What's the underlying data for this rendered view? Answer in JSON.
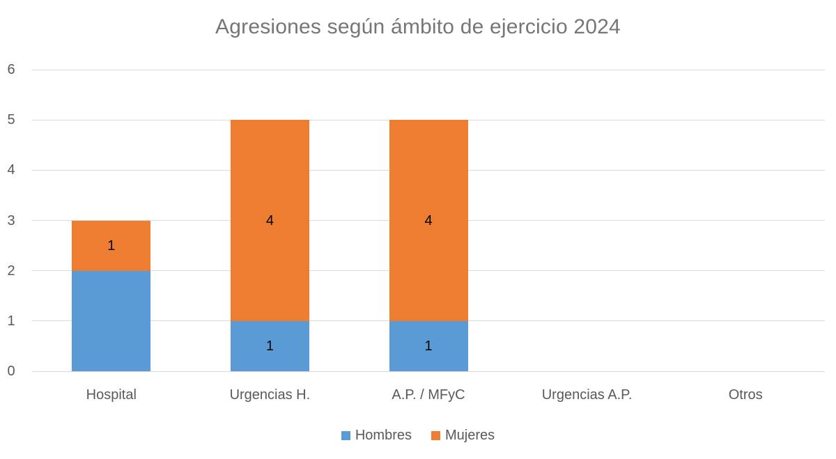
{
  "chart_data": {
    "type": "bar",
    "stacked": true,
    "title": "Agresiones según ámbito de ejercicio 2024",
    "categories": [
      "Hospital",
      "Urgencias H.",
      "A.P. / MFyC",
      "Urgencias A.P.",
      "Otros"
    ],
    "series": [
      {
        "name": "Hombres",
        "color": "#5b9bd5",
        "values": [
          2,
          1,
          1,
          0,
          0
        ],
        "data_labels": [
          null,
          "1",
          "1",
          null,
          null
        ]
      },
      {
        "name": "Mujeres",
        "color": "#ed7d31",
        "values": [
          1,
          4,
          4,
          0,
          0
        ],
        "data_labels": [
          "1",
          "4",
          "4",
          null,
          null
        ]
      }
    ],
    "y_axis": {
      "min": 0,
      "max": 6,
      "tick_step": 1,
      "tick_labels": [
        "0",
        "1",
        "2",
        "3",
        "4",
        "5",
        "6"
      ]
    },
    "xlabel": "",
    "ylabel": "",
    "grid": true,
    "legend_position": "bottom",
    "colors": {
      "title_text": "#767676",
      "axis_text": "#595959",
      "gridline": "#d9d9d9",
      "data_label_text": "#000000",
      "background": "#ffffff"
    }
  }
}
